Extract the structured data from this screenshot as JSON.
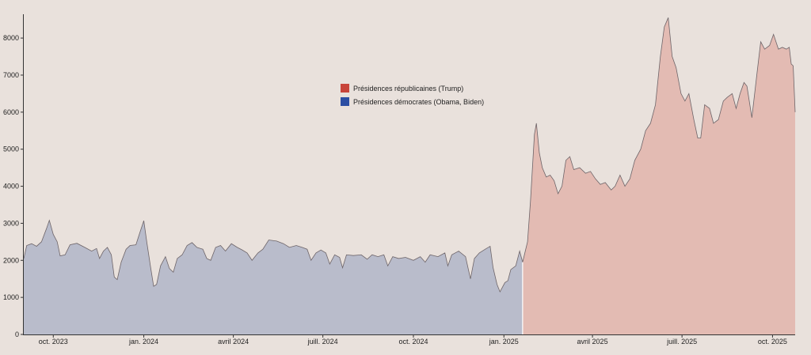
{
  "chart_data": {
    "type": "area",
    "title": "",
    "xlabel": "",
    "ylabel": "",
    "ylim": [
      0,
      8600
    ],
    "y_ticks": [
      0,
      1000,
      2000,
      3000,
      4000,
      5000,
      6000,
      7000,
      8000
    ],
    "x_range": [
      "2023-09-01",
      "2025-10-24"
    ],
    "x_ticks": [
      {
        "date": "2023-10-01",
        "label": "oct. 2023"
      },
      {
        "date": "2024-01-01",
        "label": "jan. 2024"
      },
      {
        "date": "2024-04-01",
        "label": "avril 2024"
      },
      {
        "date": "2024-07-01",
        "label": "juill. 2024"
      },
      {
        "date": "2024-10-01",
        "label": "oct. 2024"
      },
      {
        "date": "2025-01-01",
        "label": "jan. 2025"
      },
      {
        "date": "2025-04-01",
        "label": "avril 2025"
      },
      {
        "date": "2025-07-01",
        "label": "juill. 2025"
      },
      {
        "date": "2025-10-01",
        "label": "oct. 2025"
      }
    ],
    "grid": false,
    "legend_position": "top-center",
    "series": [
      {
        "name": "Présidences démocrates (Obama, Biden)",
        "color": "#2c4ea3",
        "fill": "#b9bccb",
        "points": [
          [
            "2023-09-01",
            2050
          ],
          [
            "2023-09-04",
            2400
          ],
          [
            "2023-09-09",
            2450
          ],
          [
            "2023-09-14",
            2380
          ],
          [
            "2023-09-19",
            2500
          ],
          [
            "2023-09-24",
            2850
          ],
          [
            "2023-09-27",
            3080
          ],
          [
            "2023-10-01",
            2700
          ],
          [
            "2023-10-05",
            2500
          ],
          [
            "2023-10-08",
            2120
          ],
          [
            "2023-10-13",
            2150
          ],
          [
            "2023-10-18",
            2420
          ],
          [
            "2023-10-25",
            2460
          ],
          [
            "2023-11-02",
            2350
          ],
          [
            "2023-11-09",
            2250
          ],
          [
            "2023-11-14",
            2320
          ],
          [
            "2023-11-17",
            2050
          ],
          [
            "2023-11-21",
            2250
          ],
          [
            "2023-11-25",
            2350
          ],
          [
            "2023-11-29",
            2150
          ],
          [
            "2023-12-02",
            1550
          ],
          [
            "2023-12-05",
            1480
          ],
          [
            "2023-12-09",
            1950
          ],
          [
            "2023-12-14",
            2300
          ],
          [
            "2023-12-18",
            2400
          ],
          [
            "2023-12-24",
            2420
          ],
          [
            "2023-12-28",
            2750
          ],
          [
            "2024-01-01",
            3070
          ],
          [
            "2024-01-04",
            2500
          ],
          [
            "2024-01-08",
            1800
          ],
          [
            "2024-01-11",
            1300
          ],
          [
            "2024-01-14",
            1350
          ],
          [
            "2024-01-18",
            1850
          ],
          [
            "2024-01-23",
            2100
          ],
          [
            "2024-01-27",
            1780
          ],
          [
            "2024-01-31",
            1680
          ],
          [
            "2024-02-04",
            2050
          ],
          [
            "2024-02-09",
            2150
          ],
          [
            "2024-02-14",
            2400
          ],
          [
            "2024-02-19",
            2480
          ],
          [
            "2024-02-24",
            2350
          ],
          [
            "2024-03-01",
            2300
          ],
          [
            "2024-03-05",
            2050
          ],
          [
            "2024-03-09",
            2000
          ],
          [
            "2024-03-14",
            2350
          ],
          [
            "2024-03-19",
            2400
          ],
          [
            "2024-03-24",
            2250
          ],
          [
            "2024-03-30",
            2450
          ],
          [
            "2024-04-05",
            2350
          ],
          [
            "2024-04-10",
            2280
          ],
          [
            "2024-04-15",
            2200
          ],
          [
            "2024-04-20",
            2000
          ],
          [
            "2024-04-26",
            2200
          ],
          [
            "2024-05-01",
            2300
          ],
          [
            "2024-05-07",
            2550
          ],
          [
            "2024-05-15",
            2520
          ],
          [
            "2024-05-22",
            2450
          ],
          [
            "2024-05-28",
            2350
          ],
          [
            "2024-06-04",
            2400
          ],
          [
            "2024-06-10",
            2350
          ],
          [
            "2024-06-15",
            2300
          ],
          [
            "2024-06-19",
            2000
          ],
          [
            "2024-06-24",
            2200
          ],
          [
            "2024-06-29",
            2280
          ],
          [
            "2024-07-04",
            2200
          ],
          [
            "2024-07-08",
            1900
          ],
          [
            "2024-07-13",
            2150
          ],
          [
            "2024-07-18",
            2080
          ],
          [
            "2024-07-21",
            1800
          ],
          [
            "2024-07-25",
            2150
          ],
          [
            "2024-08-01",
            2130
          ],
          [
            "2024-08-09",
            2150
          ],
          [
            "2024-08-15",
            2030
          ],
          [
            "2024-08-20",
            2150
          ],
          [
            "2024-08-26",
            2100
          ],
          [
            "2024-09-01",
            2150
          ],
          [
            "2024-09-05",
            1850
          ],
          [
            "2024-09-10",
            2100
          ],
          [
            "2024-09-16",
            2050
          ],
          [
            "2024-09-23",
            2080
          ],
          [
            "2024-10-01",
            2000
          ],
          [
            "2024-10-08",
            2100
          ],
          [
            "2024-10-13",
            1950
          ],
          [
            "2024-10-18",
            2150
          ],
          [
            "2024-10-26",
            2100
          ],
          [
            "2024-11-02",
            2200
          ],
          [
            "2024-11-05",
            1850
          ],
          [
            "2024-11-09",
            2150
          ],
          [
            "2024-11-16",
            2250
          ],
          [
            "2024-11-23",
            2100
          ],
          [
            "2024-11-28",
            1500
          ],
          [
            "2024-12-02",
            2050
          ],
          [
            "2024-12-07",
            2200
          ],
          [
            "2024-12-13",
            2300
          ],
          [
            "2024-12-18",
            2380
          ],
          [
            "2024-12-21",
            1800
          ],
          [
            "2024-12-25",
            1350
          ],
          [
            "2024-12-28",
            1150
          ],
          [
            "2025-01-02",
            1400
          ],
          [
            "2025-01-05",
            1450
          ],
          [
            "2025-01-08",
            1750
          ],
          [
            "2025-01-13",
            1850
          ],
          [
            "2025-01-17",
            2250
          ],
          [
            "2025-01-20",
            1950
          ]
        ]
      },
      {
        "name": "Présidences républicaines (Trump)",
        "color": "#c8443a",
        "fill": "#e3bbb3",
        "points": [
          [
            "2025-01-20",
            1950
          ],
          [
            "2025-01-25",
            2500
          ],
          [
            "2025-01-28",
            3600
          ],
          [
            "2025-02-01",
            5400
          ],
          [
            "2025-02-03",
            5700
          ],
          [
            "2025-02-06",
            4900
          ],
          [
            "2025-02-09",
            4500
          ],
          [
            "2025-02-13",
            4250
          ],
          [
            "2025-02-17",
            4300
          ],
          [
            "2025-02-21",
            4150
          ],
          [
            "2025-02-25",
            3800
          ],
          [
            "2025-03-01",
            4000
          ],
          [
            "2025-03-05",
            4700
          ],
          [
            "2025-03-09",
            4800
          ],
          [
            "2025-03-13",
            4450
          ],
          [
            "2025-03-19",
            4500
          ],
          [
            "2025-03-25",
            4350
          ],
          [
            "2025-03-30",
            4400
          ],
          [
            "2025-04-04",
            4200
          ],
          [
            "2025-04-09",
            4050
          ],
          [
            "2025-04-14",
            4100
          ],
          [
            "2025-04-20",
            3900
          ],
          [
            "2025-04-24",
            4000
          ],
          [
            "2025-04-29",
            4300
          ],
          [
            "2025-05-04",
            4000
          ],
          [
            "2025-05-09",
            4200
          ],
          [
            "2025-05-14",
            4700
          ],
          [
            "2025-05-20",
            5000
          ],
          [
            "2025-05-25",
            5500
          ],
          [
            "2025-05-30",
            5700
          ],
          [
            "2025-06-04",
            6200
          ],
          [
            "2025-06-09",
            7500
          ],
          [
            "2025-06-13",
            8300
          ],
          [
            "2025-06-17",
            8550
          ],
          [
            "2025-06-21",
            7500
          ],
          [
            "2025-06-25",
            7200
          ],
          [
            "2025-06-30",
            6500
          ],
          [
            "2025-07-04",
            6300
          ],
          [
            "2025-07-08",
            6500
          ],
          [
            "2025-07-13",
            5800
          ],
          [
            "2025-07-17",
            5300
          ],
          [
            "2025-07-20",
            5300
          ],
          [
            "2025-07-24",
            6200
          ],
          [
            "2025-07-29",
            6100
          ],
          [
            "2025-08-02",
            5700
          ],
          [
            "2025-08-07",
            5800
          ],
          [
            "2025-08-12",
            6300
          ],
          [
            "2025-08-16",
            6400
          ],
          [
            "2025-08-21",
            6500
          ],
          [
            "2025-08-25",
            6100
          ],
          [
            "2025-08-29",
            6500
          ],
          [
            "2025-09-02",
            6800
          ],
          [
            "2025-09-05",
            6700
          ],
          [
            "2025-09-10",
            5850
          ],
          [
            "2025-09-15",
            7000
          ],
          [
            "2025-09-19",
            7900
          ],
          [
            "2025-09-23",
            7700
          ],
          [
            "2025-09-28",
            7800
          ],
          [
            "2025-10-02",
            8100
          ],
          [
            "2025-10-07",
            7700
          ],
          [
            "2025-10-11",
            7750
          ],
          [
            "2025-10-15",
            7700
          ],
          [
            "2025-10-18",
            7750
          ],
          [
            "2025-10-20",
            7300
          ],
          [
            "2025-10-22",
            7250
          ],
          [
            "2025-10-24",
            6000
          ]
        ]
      }
    ]
  },
  "legend": [
    {
      "label": "Présidences républicaines (Trump)",
      "color": "#c8443a"
    },
    {
      "label": "Présidences démocrates (Obama, Biden)",
      "color": "#2c4ea3"
    }
  ]
}
